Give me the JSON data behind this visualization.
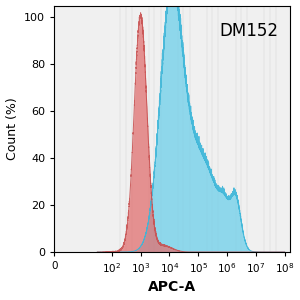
{
  "xlabel": "APC-A",
  "ylabel": "Count (%)",
  "ylim": [
    0,
    105
  ],
  "yticks": [
    0,
    20,
    40,
    60,
    80,
    100
  ],
  "red_fill": "#e07070",
  "red_edge": "#c85050",
  "blue_fill": "#6ecfea",
  "blue_edge": "#3ab5d8",
  "red_alpha": 0.75,
  "blue_alpha": 0.75,
  "background_color": "#f0f0f0",
  "annotation_text": "DM152",
  "annotation_fontsize": 12
}
